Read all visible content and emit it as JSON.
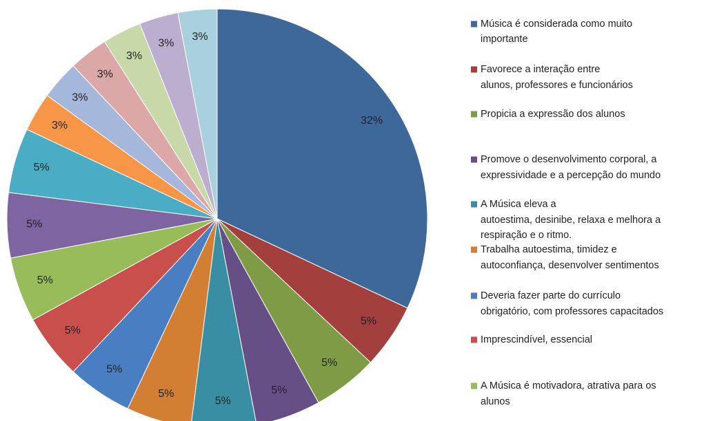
{
  "chart_data": {
    "type": "pie",
    "categories": [
      [
        "Música é considerada como muito",
        "importante"
      ],
      [
        "Favorece a interação entre",
        "alunos, professores e funcionários"
      ],
      [
        "Propicia a expressão dos alunos"
      ],
      [
        "Promove o desenvolvimento corporal, a",
        "expressividade e a percepção do mundo"
      ],
      [
        "A Música eleva a",
        "autoestima, desinibe, relaxa e melhora a",
        "respiração e o ritmo."
      ],
      [
        "Trabalha autoestima, timidez e",
        "autoconfiança, desenvolver sentimentos"
      ],
      [
        "Deveria fazer parte do currículo",
        "obrigatório, com professores capacitados"
      ],
      [
        "Imprescindível, essencial"
      ],
      [
        "A Música é motivadora, atrativa para os",
        "alunos"
      ],
      null,
      null,
      null,
      null,
      null,
      null,
      null,
      null
    ],
    "values": [
      32,
      5,
      5,
      5,
      5,
      5,
      5,
      5,
      5,
      5,
      5,
      3,
      3,
      3,
      3,
      3,
      3
    ],
    "value_labels": [
      "32%",
      "5%",
      "5%",
      "5%",
      "5%",
      "5%",
      "5%",
      "5%",
      "5%",
      "5%",
      "5%",
      "3%",
      "3%",
      "3%",
      "3%",
      "3%",
      "3%"
    ],
    "colors": [
      "#3F689A",
      "#A33F3C",
      "#7F9B45",
      "#664F86",
      "#3A8EA3",
      "#D27F33",
      "#4A7EC2",
      "#C94F4C",
      "#99BC5A",
      "#7E64A0",
      "#4BACC6",
      "#F79646",
      "#A5B7DB",
      "#DBA7A7",
      "#C8D8A8",
      "#BCAECF",
      "#A8D0DE"
    ]
  }
}
